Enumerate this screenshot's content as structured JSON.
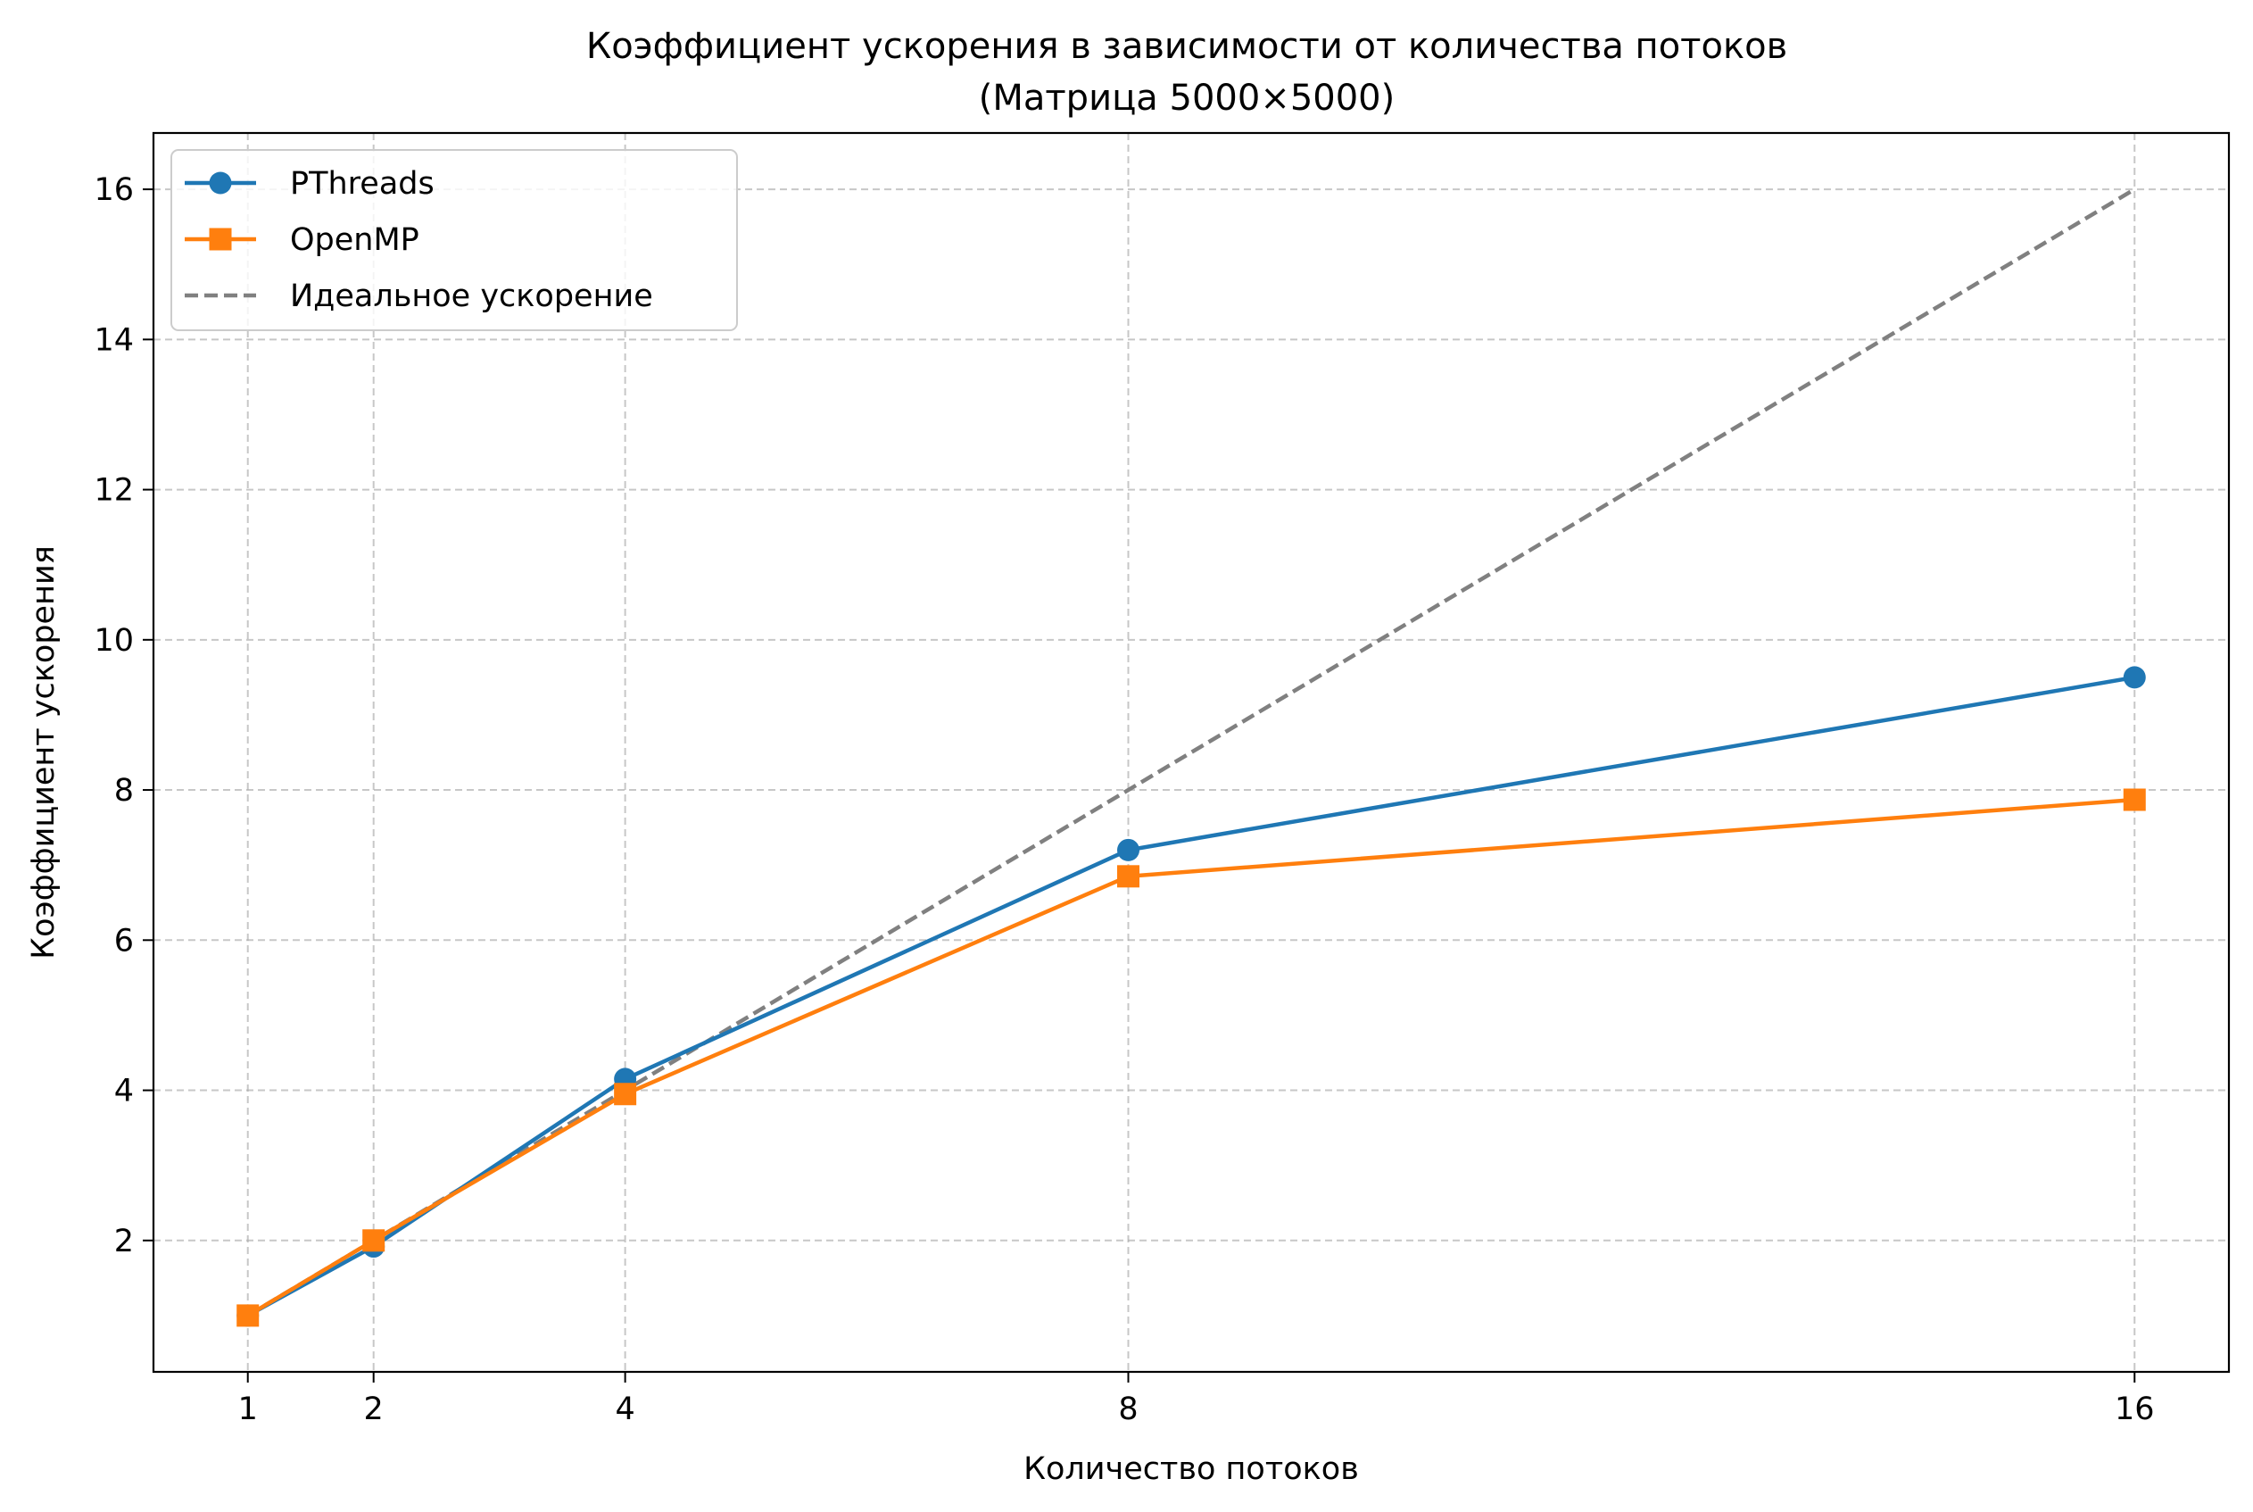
{
  "chart_data": {
    "type": "line",
    "title": "Коэффициент ускорения в зависимости от количества потоков",
    "subtitle": "(Матрица 5000×5000)",
    "xlabel": "Количество потоков",
    "ylabel": "Коэффициент ускорения",
    "x": [
      1,
      2,
      4,
      8,
      16
    ],
    "x_ticks": [
      1,
      2,
      4,
      8,
      16
    ],
    "y_ticks": [
      2,
      4,
      6,
      8,
      10,
      12,
      14,
      16
    ],
    "xlim": [
      0.25,
      16.75
    ],
    "ylim": [
      0.25,
      16.75
    ],
    "grid": true,
    "legend_position": "top-left",
    "series": [
      {
        "name": "PThreads",
        "values": [
          1.0,
          1.92,
          4.15,
          7.2,
          9.5
        ],
        "color": "#1f77b4",
        "marker": "circle",
        "line_style": "solid"
      },
      {
        "name": "OpenMP",
        "values": [
          1.0,
          2.0,
          3.95,
          6.85,
          7.87
        ],
        "color": "#ff7f0e",
        "marker": "square",
        "line_style": "solid"
      },
      {
        "name": "Идеальное ускорение",
        "values": [
          1,
          2,
          4,
          8,
          16
        ],
        "color": "#808080",
        "marker": "none",
        "line_style": "dashed"
      }
    ]
  }
}
